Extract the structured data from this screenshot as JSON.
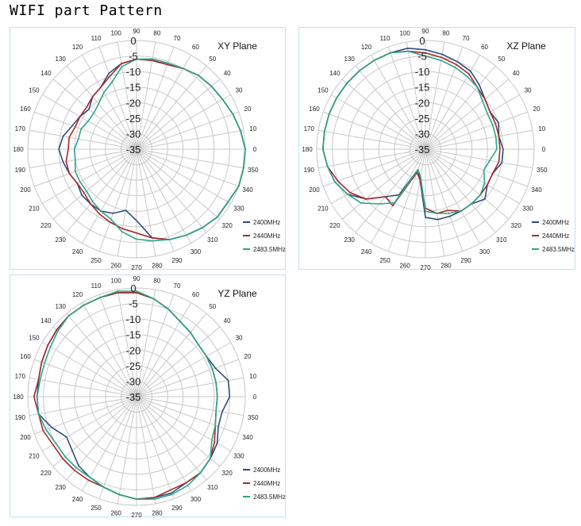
{
  "page": {
    "title": "WIFI part Pattern"
  },
  "colors": {
    "2400MHz": "#2e4d7b",
    "2440MHz": "#a52a2a",
    "2483.5MHz": "#2ca58a",
    "grid": "#c8c8c8",
    "panel_border": "#bfe3ef"
  },
  "chart_data": [
    {
      "type": "polar-line",
      "title": "XY Plane",
      "angles": [
        0,
        10,
        20,
        30,
        40,
        50,
        60,
        70,
        80,
        90,
        100,
        110,
        120,
        130,
        140,
        150,
        160,
        170,
        180,
        190,
        200,
        210,
        220,
        230,
        240,
        250,
        260,
        270,
        280,
        290,
        300,
        310,
        320,
        330,
        340,
        350
      ],
      "radial_ticks": [
        0,
        -5,
        -10,
        -15,
        -20,
        -25,
        -30,
        -35
      ],
      "rlim": [
        -35,
        0
      ],
      "legend": "bottom-right",
      "series": [
        {
          "name": "2400MHz",
          "values": [
            0,
            -1,
            -2,
            -3,
            -3.5,
            -4,
            -5,
            -6,
            -6,
            -6,
            -7,
            -9,
            -12,
            -13,
            -15,
            -14,
            -13,
            -11,
            -10,
            -11,
            -12,
            -13,
            -12,
            -12,
            -12,
            -13,
            -15,
            -12,
            -6,
            -4,
            -3,
            -2,
            -1,
            -1,
            0,
            0
          ]
        },
        {
          "name": "2440MHz",
          "values": [
            0,
            -1,
            -2,
            -3,
            -3.5,
            -4,
            -5,
            -6,
            -6,
            -6,
            -7,
            -10,
            -12,
            -13,
            -14,
            -14,
            -14,
            -13,
            -13,
            -12,
            -12,
            -13,
            -13,
            -12,
            -11,
            -10,
            -9,
            -8,
            -6,
            -4,
            -3,
            -2,
            -1,
            -1,
            0,
            0
          ]
        },
        {
          "name": "2483.5MHz",
          "values": [
            0,
            -1,
            -2,
            -3,
            -3.5,
            -4,
            -5,
            -5.5,
            -5.5,
            -6,
            -8,
            -12,
            -14,
            -16,
            -17,
            -17,
            -16,
            -16,
            -15,
            -15,
            -14,
            -14,
            -14,
            -13,
            -12,
            -11,
            -8,
            -6,
            -5,
            -4,
            -3,
            -2,
            -1,
            -1,
            0,
            0
          ]
        }
      ]
    },
    {
      "type": "polar-line",
      "title": "XZ Plane",
      "angles": [
        0,
        10,
        20,
        30,
        40,
        50,
        60,
        70,
        80,
        90,
        100,
        110,
        120,
        130,
        140,
        150,
        160,
        170,
        180,
        190,
        200,
        210,
        220,
        230,
        240,
        250,
        260,
        270,
        280,
        290,
        300,
        310,
        320,
        330,
        340,
        350
      ],
      "radial_ticks": [
        0,
        -5,
        -10,
        -15,
        -20,
        -25,
        -30,
        -35
      ],
      "rlim": [
        -35,
        0
      ],
      "legend": "bottom-right",
      "series": [
        {
          "name": "2400MHz",
          "values": [
            -10,
            -11,
            -10,
            -11,
            -10,
            -8,
            -6,
            -5,
            -4,
            -3,
            -2,
            -2,
            -2,
            -2,
            -2,
            -2,
            -2,
            -2,
            -2,
            -3,
            -4,
            -6,
            -10,
            -15,
            -18,
            -28,
            -25,
            -13,
            -12,
            -12,
            -12,
            -12,
            -10,
            -12,
            -12,
            -10
          ]
        },
        {
          "name": "2440MHz",
          "values": [
            -11,
            -11,
            -11,
            -11,
            -10,
            -9,
            -7,
            -6,
            -5,
            -4,
            -3,
            -2,
            -2,
            -2,
            -2,
            -2,
            -2,
            -2,
            -2,
            -3,
            -5,
            -7,
            -10,
            -15,
            -14,
            -27,
            -25,
            -16,
            -14,
            -14,
            -12,
            -12,
            -12,
            -12,
            -12,
            -11
          ]
        },
        {
          "name": "2483.5MHz",
          "values": [
            -12,
            -12,
            -12,
            -12,
            -11,
            -9,
            -8,
            -7,
            -6,
            -5,
            -3,
            -2,
            -2,
            -2,
            -2,
            -2,
            -2,
            -2,
            -2,
            -3,
            -4,
            -6,
            -8,
            -12,
            -15,
            -28,
            -26,
            -15,
            -14,
            -13,
            -12,
            -12,
            -12,
            -13,
            -15,
            -14
          ]
        }
      ]
    },
    {
      "type": "polar-line",
      "title": "YZ Plane",
      "angles": [
        0,
        10,
        20,
        30,
        40,
        50,
        60,
        70,
        80,
        90,
        100,
        110,
        120,
        130,
        140,
        150,
        160,
        170,
        180,
        190,
        200,
        210,
        220,
        230,
        240,
        250,
        260,
        270,
        280,
        290,
        300,
        310,
        320,
        330,
        340,
        350
      ],
      "radial_ticks": [
        0,
        -5,
        -10,
        -15,
        -20,
        -25,
        -30,
        -35
      ],
      "rlim": [
        -35,
        0
      ],
      "legend": "bottom-right",
      "series": [
        {
          "name": "2400MHz",
          "values": [
            -5,
            -5,
            -8,
            -9,
            -9,
            -8,
            -7,
            -5,
            -3,
            -1.5,
            -1,
            -1,
            -1,
            -1,
            -1.5,
            -2,
            -2.5,
            -3,
            -3,
            -3,
            -6,
            -9,
            -8,
            -6,
            -5,
            -4,
            -3,
            -2,
            -2,
            -2,
            -3,
            -3,
            -4,
            -5,
            -7,
            -7
          ]
        },
        {
          "name": "2440MHz",
          "values": [
            -9,
            -9,
            -9,
            -9,
            -9,
            -8,
            -7,
            -5,
            -3,
            -1.5,
            -1,
            -1,
            -1,
            -1,
            -1.5,
            -2,
            -2.5,
            -3,
            -2,
            -3,
            -3,
            -4,
            -4,
            -4,
            -4,
            -4,
            -3,
            -2,
            -2,
            -3,
            -3,
            -3,
            -4,
            -6,
            -8,
            -9
          ]
        },
        {
          "name": "2483.5MHz",
          "values": [
            -9,
            -9,
            -9,
            -9,
            -9,
            -8,
            -7,
            -5,
            -3,
            -1,
            -0.5,
            -1,
            -1,
            -1,
            -2,
            -3,
            -3.5,
            -3.5,
            -3,
            -3,
            -4,
            -5,
            -5,
            -5,
            -5,
            -4,
            -3,
            -2,
            -1.5,
            -1.5,
            -2,
            -3,
            -4,
            -7,
            -8,
            -9
          ]
        }
      ]
    }
  ]
}
